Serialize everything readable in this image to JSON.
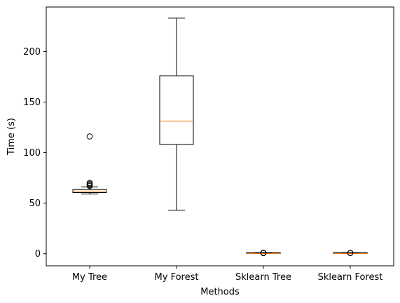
{
  "chart_data": {
    "type": "boxplot",
    "title": "",
    "xlabel": "Methods",
    "ylabel": "Time (s)",
    "ylim": [
      -12,
      244
    ],
    "yticks": [
      0,
      50,
      100,
      150,
      200
    ],
    "categories": [
      "My Tree",
      "My Forest",
      "Sklearn Tree",
      "Sklearn Forest"
    ],
    "boxes": [
      {
        "label": "My Tree",
        "whisker_low": 59,
        "q1": 60.5,
        "median": 62,
        "q3": 63.5,
        "whisker_high": 66,
        "outliers": [
          116,
          70,
          69,
          68,
          67
        ]
      },
      {
        "label": "My Forest",
        "whisker_low": 43,
        "q1": 108,
        "median": 131,
        "q3": 176,
        "whisker_high": 233,
        "outliers": []
      },
      {
        "label": "Sklearn Tree",
        "whisker_low": 0.1,
        "q1": 0.2,
        "median": 0.25,
        "q3": 0.3,
        "whisker_high": 0.4,
        "outliers": [
          0.6,
          0.8,
          0.9
        ]
      },
      {
        "label": "Sklearn Forest",
        "whisker_low": 0.1,
        "q1": 0.2,
        "median": 0.25,
        "q3": 0.3,
        "whisker_high": 0.4,
        "outliers": [
          0.7,
          0.9
        ]
      }
    ],
    "grid": false,
    "colors": {
      "box": "#000000",
      "median": "#ff7f0e",
      "outlier": "#000000"
    }
  }
}
